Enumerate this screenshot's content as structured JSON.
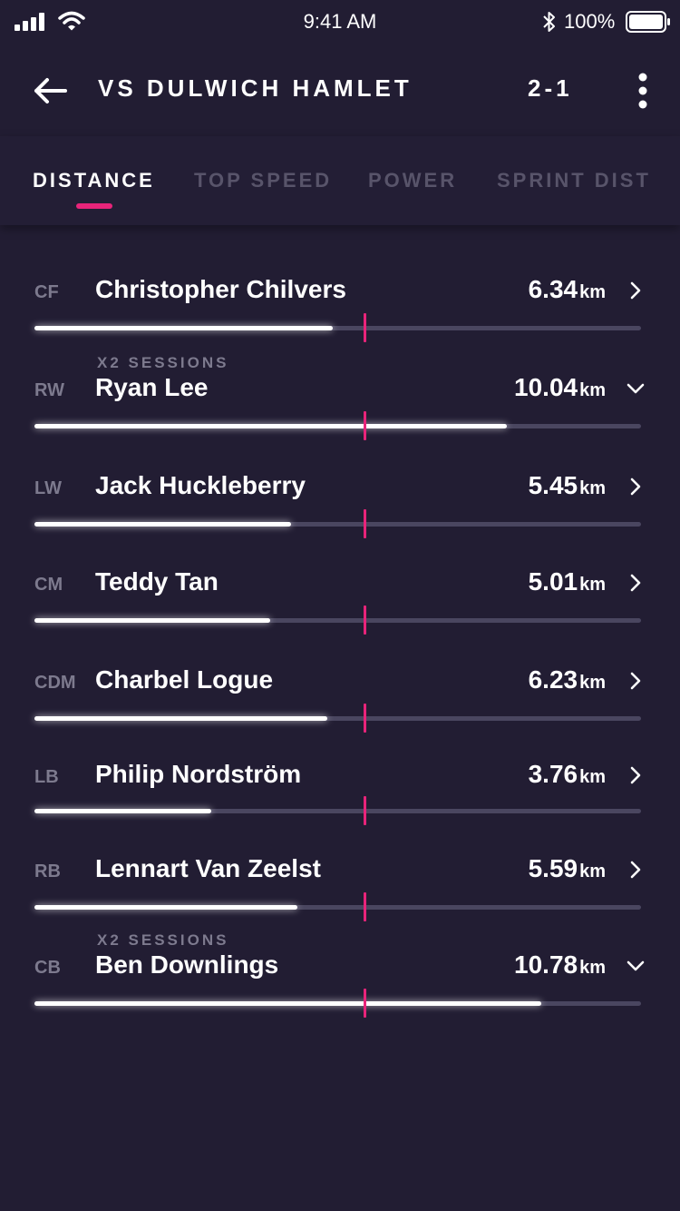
{
  "status_bar": {
    "time": "9:41 AM",
    "battery": "100%"
  },
  "header": {
    "title": "VS DULWICH HAMLET",
    "score": "2-1",
    "back_icon": "arrow-left-icon",
    "menu_icon": "more-vertical-icon"
  },
  "tabs": [
    {
      "label": "DISTANCE",
      "active": true
    },
    {
      "label": "TOP SPEED",
      "active": false
    },
    {
      "label": "POWER",
      "active": false
    },
    {
      "label": "SPRINT DIST",
      "active": false
    }
  ],
  "colors": {
    "background": "#221d33",
    "accent": "#e8247a",
    "muted_text": "#7d7a8e",
    "track": "#4a4660"
  },
  "bar_scale_max_km": 12.9,
  "team_average_km": 7.0,
  "players": [
    {
      "position": "CF",
      "name": "Christopher Chilvers",
      "value": "6.34",
      "unit": "km",
      "distance_km": 6.34,
      "sessions": "",
      "expanded": false
    },
    {
      "position": "RW",
      "name": "Ryan Lee",
      "value": "10.04",
      "unit": "km",
      "distance_km": 10.04,
      "sessions": "X2 SESSIONS",
      "expanded": true
    },
    {
      "position": "LW",
      "name": "Jack Huckleberry",
      "value": "5.45",
      "unit": "km",
      "distance_km": 5.45,
      "sessions": "",
      "expanded": false
    },
    {
      "position": "CM",
      "name": "Teddy Tan",
      "value": "5.01",
      "unit": "km",
      "distance_km": 5.01,
      "sessions": "",
      "expanded": false
    },
    {
      "position": "CDM",
      "name": "Charbel Logue",
      "value": "6.23",
      "unit": "km",
      "distance_km": 6.23,
      "sessions": "",
      "expanded": false
    },
    {
      "position": "LB",
      "name": "Philip Nordström",
      "value": "3.76",
      "unit": "km",
      "distance_km": 3.76,
      "sessions": "",
      "expanded": false
    },
    {
      "position": "RB",
      "name": "Lennart Van Zeelst",
      "value": "5.59",
      "unit": "km",
      "distance_km": 5.59,
      "sessions": "",
      "expanded": false
    },
    {
      "position": "CB",
      "name": "Ben Downlings",
      "value": "10.78",
      "unit": "km",
      "distance_km": 10.78,
      "sessions": "X2 SESSIONS",
      "expanded": true
    }
  ]
}
